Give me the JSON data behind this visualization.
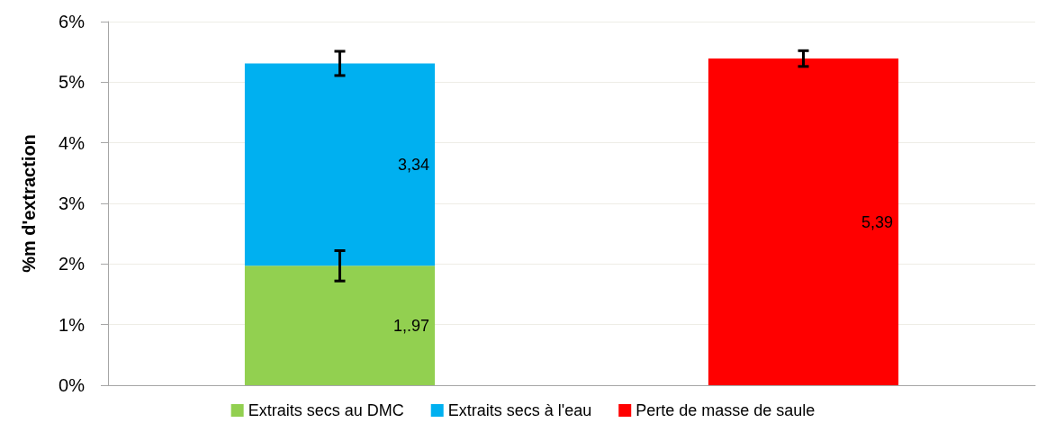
{
  "chart_data": {
    "type": "bar",
    "ylabel": "%m d'extraction",
    "categories": [
      null,
      null
    ],
    "stacked": true,
    "ylim": [
      0,
      6
    ],
    "yticks": [
      {
        "value": 0,
        "label": "0%"
      },
      {
        "value": 1,
        "label": "1%"
      },
      {
        "value": 2,
        "label": "2%"
      },
      {
        "value": 3,
        "label": "3%"
      },
      {
        "value": 4,
        "label": "4%"
      },
      {
        "value": 5,
        "label": "5%"
      },
      {
        "value": 6,
        "label": "6%"
      }
    ],
    "grid": "y",
    "legend": "bottom",
    "series": [
      {
        "name": "Extraits secs au DMC",
        "color": "#92d050",
        "values": [
          1.97,
          null
        ],
        "errors": [
          0.25,
          null
        ],
        "value_labels": [
          "1,.97",
          null
        ]
      },
      {
        "name": "Extraits secs à l'eau",
        "color": "#00b0f0",
        "values": [
          3.34,
          null
        ],
        "errors": [
          0.2,
          null
        ],
        "value_labels": [
          "3,34",
          null
        ]
      },
      {
        "name": "Perte de masse de saule",
        "color": "#ff0000",
        "values": [
          null,
          5.39
        ],
        "errors": [
          null,
          0.13
        ],
        "value_labels": [
          null,
          "5,39"
        ]
      }
    ]
  }
}
